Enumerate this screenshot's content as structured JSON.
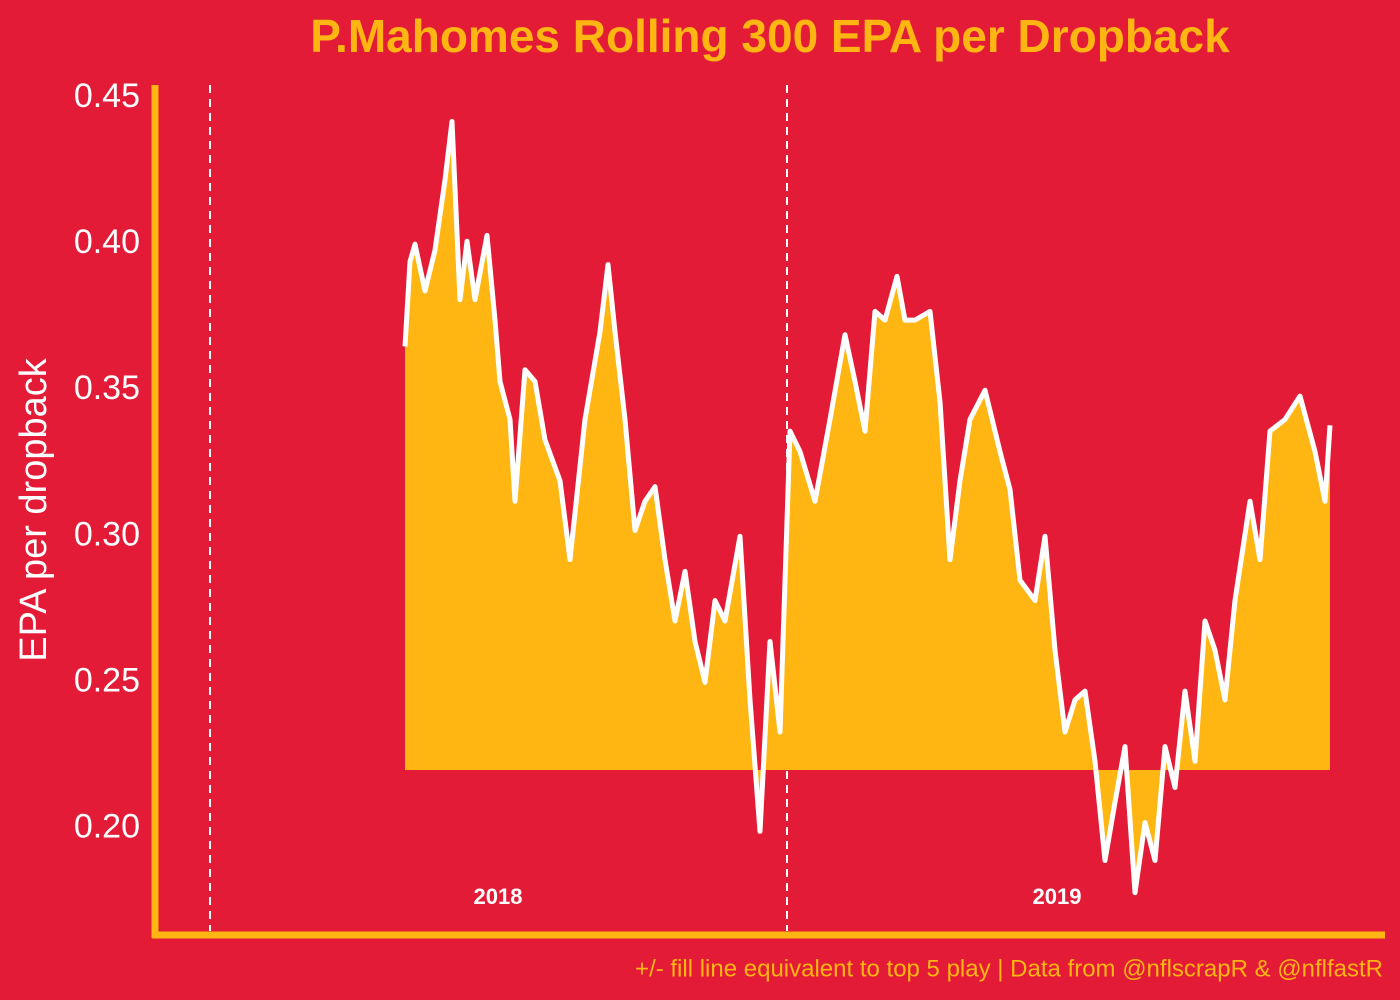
{
  "chart_data": {
    "type": "area",
    "title": "P.Mahomes Rolling 300 EPA per Dropback",
    "y_label": "EPA per dropback",
    "caption": "+/- fill line equivalent to top 5 play | Data from @nflscrapR & @nflfastR",
    "background": "#e31b37",
    "accent_color": "#ffb612",
    "fill_baseline": 0.22,
    "xlim": [
      0,
      1230
    ],
    "ylim": [
      0.1635,
      0.4545
    ],
    "yticks": [
      {
        "value": 0.2,
        "label": "0.20"
      },
      0.25,
      {
        "value": 0.3,
        "label": "0.30"
      },
      0.35,
      {
        "value": 0.4,
        "label": "0.40"
      },
      0.45
    ],
    "season_lines": [
      55,
      632
    ],
    "annotations": [
      {
        "text": "2018",
        "x": 343
      },
      {
        "text": "2019",
        "x": 902
      }
    ],
    "series": [
      {
        "color": "#ffffff",
        "fill": "#ffb612",
        "x": [
          250,
          255,
          260,
          270,
          280,
          290,
          297,
          305,
          312,
          320,
          332,
          340,
          345,
          355,
          360,
          370,
          380,
          390,
          405,
          415,
          430,
          445,
          453,
          460,
          470,
          480,
          490,
          500,
          510,
          520,
          530,
          540,
          550,
          560,
          570,
          585,
          595,
          605,
          615,
          625,
          635,
          645,
          660,
          675,
          690,
          700,
          710,
          720,
          730,
          742,
          750,
          760,
          775,
          785,
          795,
          805,
          815,
          830,
          845,
          855,
          865,
          880,
          890,
          900,
          910,
          920,
          930,
          940,
          950,
          960,
          970,
          980,
          990,
          1000,
          1010,
          1020,
          1030,
          1040,
          1050,
          1060,
          1070,
          1080,
          1095,
          1105,
          1115,
          1130,
          1145,
          1160,
          1170,
          1175
        ],
        "values": [
          0.365,
          0.394,
          0.4,
          0.384,
          0.398,
          0.422,
          0.442,
          0.381,
          0.401,
          0.381,
          0.403,
          0.374,
          0.353,
          0.34,
          0.312,
          0.357,
          0.353,
          0.333,
          0.319,
          0.292,
          0.34,
          0.37,
          0.393,
          0.37,
          0.34,
          0.302,
          0.312,
          0.317,
          0.292,
          0.271,
          0.288,
          0.264,
          0.25,
          0.278,
          0.271,
          0.3,
          0.244,
          0.199,
          0.264,
          0.233,
          0.336,
          0.329,
          0.312,
          0.34,
          0.369,
          0.353,
          0.336,
          0.377,
          0.374,
          0.389,
          0.374,
          0.374,
          0.377,
          0.346,
          0.292,
          0.319,
          0.34,
          0.35,
          0.329,
          0.316,
          0.285,
          0.278,
          0.3,
          0.261,
          0.233,
          0.244,
          0.247,
          0.223,
          0.189,
          0.209,
          0.228,
          0.178,
          0.202,
          0.189,
          0.228,
          0.214,
          0.247,
          0.223,
          0.271,
          0.261,
          0.244,
          0.278,
          0.312,
          0.292,
          0.336,
          0.34,
          0.348,
          0.329,
          0.312,
          0.338
        ]
      }
    ]
  }
}
